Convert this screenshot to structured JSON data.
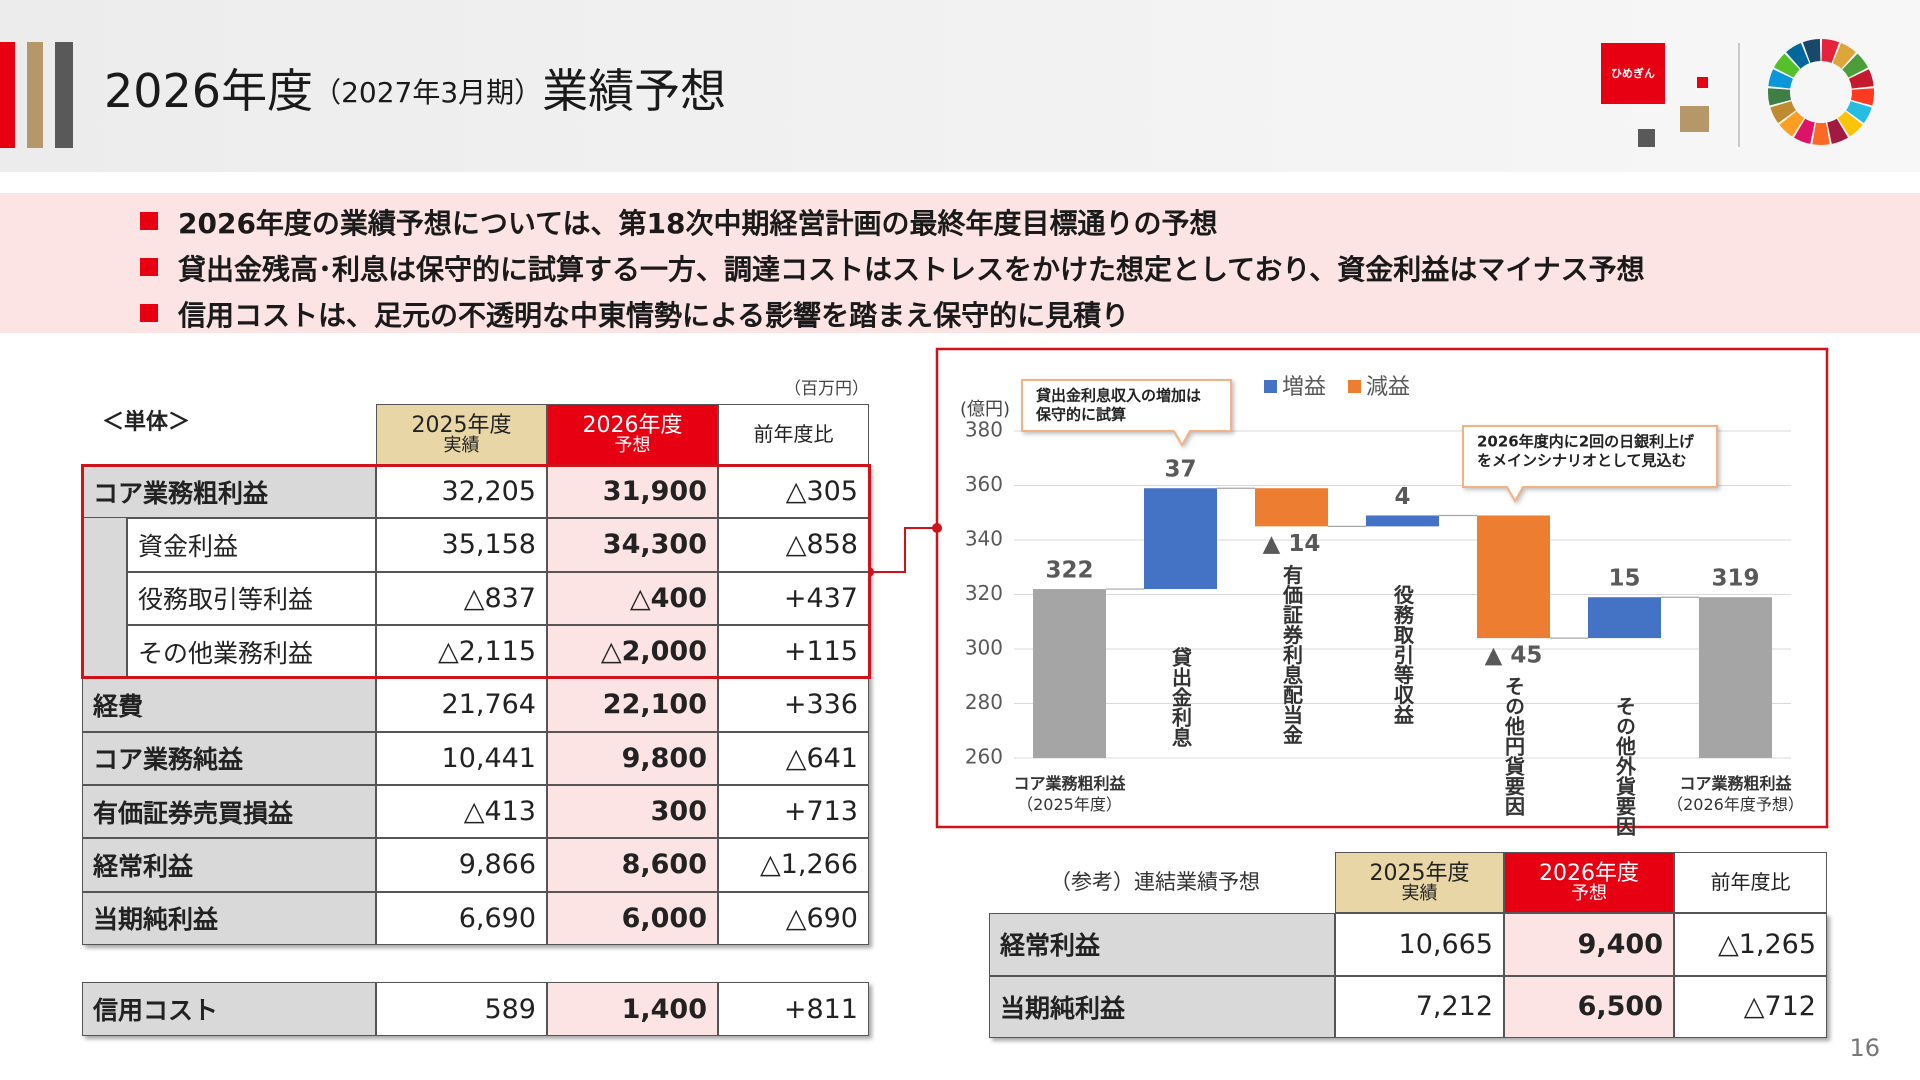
{
  "header": {
    "title": "2026年度",
    "subtitle": "（2027年3月期）",
    "title_suffix": "業績予想",
    "logo": "ひめぎん"
  },
  "bullets": [
    "2026年度の業績予想については、第18次中期経営計画の最終年度目標通りの予想",
    "貸出金残高･利息は保守的に試算する一方、調達コストはストレスをかけた想定としており、資金利益はマイナス予想",
    "信用コストは、足元の不透明な中東情勢による影響を踏まえ保守的に見積り"
  ],
  "standalone_table": {
    "label": "＜単体＞",
    "unit": "（百万円）",
    "columns": [
      [
        "2025年度",
        "実績"
      ],
      [
        "2026年度",
        "予想"
      ],
      [
        "前年度比"
      ]
    ],
    "rows": [
      [
        "コア業務粗利益",
        "32,205",
        "31,900",
        "△305"
      ],
      [
        "資金利益",
        "35,158",
        "34,300",
        "△858"
      ],
      [
        "役務取引等利益",
        "△837",
        "△400",
        "+437"
      ],
      [
        "その他業務利益",
        "△2,115",
        "△2,000",
        "+115"
      ],
      [
        "経費",
        "21,764",
        "22,100",
        "+336"
      ],
      [
        "コア業務純益",
        "10,441",
        "9,800",
        "△641"
      ],
      [
        "有価証券売買損益",
        "△413",
        "300",
        "+713"
      ],
      [
        "経常利益",
        "9,866",
        "8,600",
        "△1,266"
      ],
      [
        "当期純利益",
        "6,690",
        "6,000",
        "△690"
      ]
    ],
    "credit_row": [
      "信用コスト",
      "589",
      "1,400",
      "+811"
    ]
  },
  "consolidated_table": {
    "caption": "（参考）連結業績予想",
    "columns": [
      [
        "2025年度",
        "実績"
      ],
      [
        "2026年度",
        "予想"
      ],
      [
        "前年度比"
      ]
    ],
    "rows": [
      [
        "経常利益",
        "10,665",
        "9,400",
        "△1,265"
      ],
      [
        "当期純利益",
        "7,212",
        "6,500",
        "△712"
      ]
    ]
  },
  "chart_data": {
    "type": "waterfall",
    "y_axis_label": "(億円)",
    "categories": [
      "コア業務粗利益（2025年度）",
      "貸出金利息",
      "有価証券利息配当金",
      "役務取引等収益",
      "その他円貨要因",
      "その他外貨要因",
      "コア業務粗利益（2026年度予想）"
    ],
    "values": [
      322,
      37,
      -14,
      4,
      -45,
      15,
      319
    ],
    "value_labels": [
      "322",
      "37",
      "▲ 14",
      "4",
      "▲ 45",
      "15",
      "319"
    ],
    "legend": [
      {
        "name": "増益",
        "color": "#4472c4"
      },
      {
        "name": "減益",
        "color": "#ed7d31"
      }
    ],
    "total_color": "#a5a5a5",
    "ylim": [
      260,
      380
    ],
    "yticks": [
      260,
      280,
      300,
      320,
      340,
      360,
      380
    ],
    "grid": true,
    "annotations": [
      [
        "貸出金利息収入の増加は",
        "保守的に試算"
      ],
      [
        "2026年度内に2回の日銀利上げ",
        "をメインシナリオとして見込む"
      ]
    ]
  },
  "page_number": "16"
}
